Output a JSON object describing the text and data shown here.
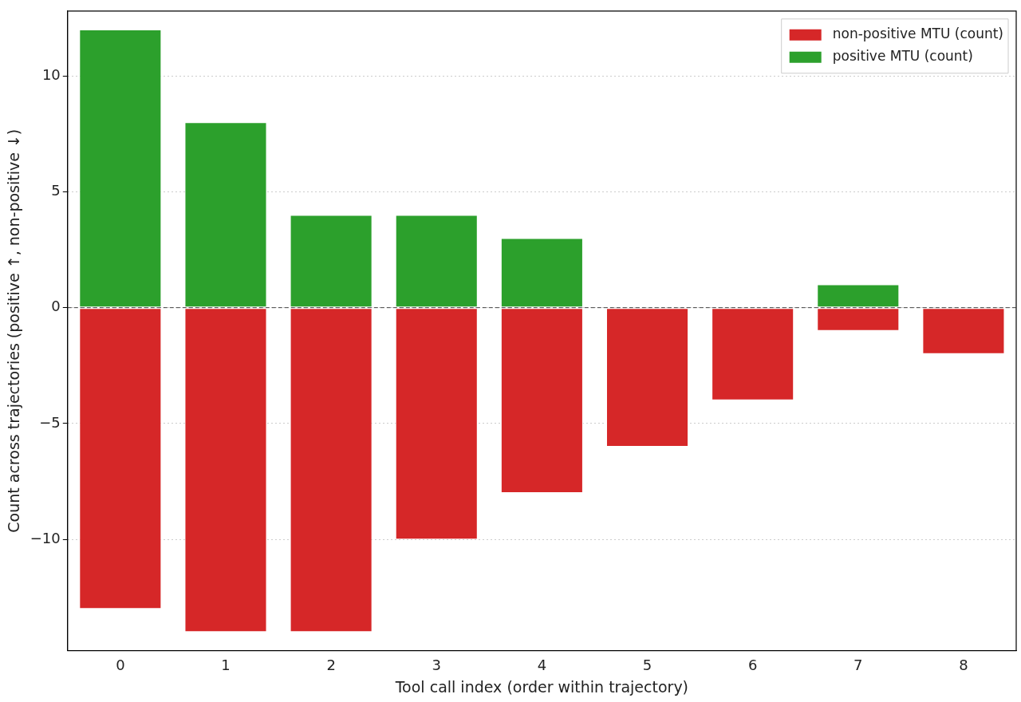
{
  "chart_data": {
    "type": "bar",
    "xlabel": "Tool call index (order within trajectory)",
    "ylabel": "Count across trajectories (positive ↑, non-positive ↓)",
    "categories": [
      "0",
      "1",
      "2",
      "3",
      "4",
      "5",
      "6",
      "7",
      "8"
    ],
    "stacked": true,
    "series": [
      {
        "name": "non-positive MTU (count)",
        "color": "#d62728",
        "values": [
          -13,
          -14,
          -14,
          -10,
          -8,
          -6,
          -4,
          -1,
          -2
        ]
      },
      {
        "name": "positive MTU (count)",
        "color": "#2ca02c",
        "values": [
          12,
          8,
          4,
          4,
          3,
          0,
          0,
          1,
          0
        ]
      }
    ],
    "ylim": [
      -14.8,
      12.8
    ],
    "yticks": [
      {
        "value": -10,
        "label": "−10"
      },
      {
        "value": -5,
        "label": "−5"
      },
      0,
      5,
      10
    ],
    "ref_lines": [
      {
        "axis": "y",
        "value": 0,
        "color": "#444444",
        "line_style": "dashed"
      }
    ],
    "grid": "y",
    "legend": "top right"
  }
}
